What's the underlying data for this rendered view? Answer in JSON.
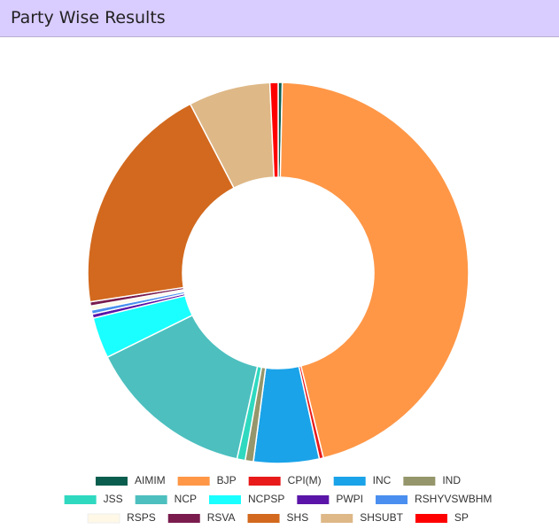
{
  "chart_data": {
    "type": "donut",
    "title": "Party Wise Results",
    "categories": [
      "AIMIM",
      "BJP",
      "CPI(M)",
      "INC",
      "IND",
      "JSS",
      "NCP",
      "NCPSP",
      "PWPI",
      "RSHYVSWBHM",
      "RSPS",
      "RSVA",
      "SHS",
      "SHSUBT",
      "SP"
    ],
    "values": [
      1,
      132,
      1,
      16,
      2,
      2,
      41,
      10,
      1,
      1,
      1,
      1,
      57,
      20,
      2
    ],
    "colors": [
      "#0b5e4e",
      "#ff9747",
      "#e81a1a",
      "#1aa3e8",
      "#95966b",
      "#2fd9c0",
      "#4dbfbf",
      "#1affff",
      "#5a15a8",
      "#4a8ff0",
      "#fff8e6",
      "#7a1c4e",
      "#d2691e",
      "#deb887",
      "#ff0000"
    ],
    "legend": "bottom"
  }
}
